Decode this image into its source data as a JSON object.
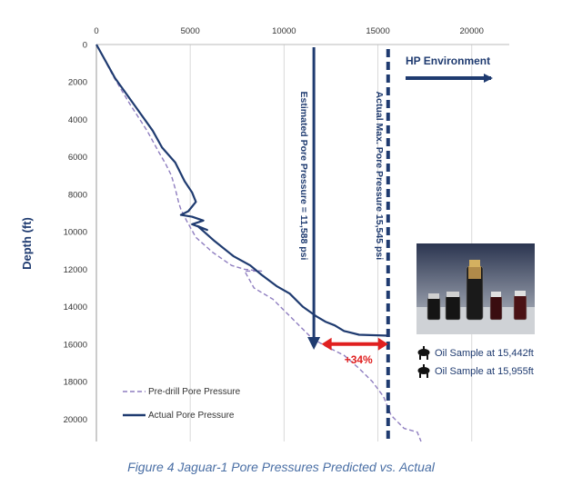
{
  "caption": "Figure 4 Jaguar-1 Pore Pressures Predicted vs. Actual",
  "colors": {
    "actual": "#1f3b70",
    "predrill": "#8f7ec0",
    "arrow_red": "#e02020",
    "grid": "#d9d9d9"
  },
  "icons": [
    "oil-drop-icon",
    "oil-drop-icon"
  ],
  "chart_data": {
    "type": "line",
    "ylabel": "Depth (ft)",
    "x_axis_position": "top",
    "y_inverted": true,
    "xlim": [
      0,
      22000
    ],
    "ylim": [
      0,
      21200
    ],
    "x_ticks": [
      0,
      5000,
      10000,
      15000,
      20000
    ],
    "y_ticks": [
      0,
      2000,
      4000,
      6000,
      8000,
      10000,
      12000,
      14000,
      16000,
      18000,
      20000
    ],
    "x_tick_labels": [
      "0",
      "5000",
      "10000",
      "15000",
      "20000"
    ],
    "y_tick_labels": [
      "0",
      "2000",
      "4000",
      "6000",
      "8000",
      "10000",
      "12000",
      "14000",
      "16000",
      "18000",
      "20000"
    ],
    "grid": "vertical",
    "series": [
      {
        "name": "Pre-drill Pore Pressure",
        "style": "dashed",
        "x": [
          0,
          900,
          1800,
          2700,
          3300,
          3700,
          4000,
          4200,
          4400,
          4500,
          4800,
          5300,
          6200,
          7200,
          7900,
          8800,
          7900,
          8400,
          9400,
          10500,
          11500,
          12200,
          13200,
          14000,
          14700,
          15300,
          15700,
          16400,
          17100,
          17300
        ],
        "y": [
          0,
          1700,
          3200,
          4600,
          5700,
          6400,
          7000,
          7700,
          8500,
          8800,
          9400,
          10300,
          11100,
          11800,
          12000,
          12100,
          12100,
          13000,
          13600,
          14700,
          15700,
          16100,
          16600,
          17300,
          18000,
          18800,
          19800,
          20500,
          20700,
          21200
        ]
      },
      {
        "name": "Actual Pore Pressure",
        "style": "solid",
        "x": [
          0,
          1000,
          2000,
          3000,
          3500,
          4200,
          4700,
          5100,
          5300,
          4900,
          4500,
          5100,
          5700,
          5100,
          5900,
          5400,
          6300,
          7300,
          8200,
          8800,
          9600,
          10300,
          11000,
          11700,
          12200,
          12700,
          13200,
          14000,
          15545
        ],
        "y": [
          0,
          1800,
          3200,
          4600,
          5500,
          6300,
          7300,
          7900,
          8400,
          8900,
          9100,
          9200,
          9400,
          9600,
          9900,
          9700,
          10500,
          11300,
          11800,
          12300,
          12900,
          13300,
          14000,
          14500,
          14800,
          15000,
          15300,
          15500,
          15550
        ]
      }
    ],
    "annotations": [
      {
        "text": "Estimated Pore Pressure = 11,588 psi",
        "x": 11588,
        "y_from": 0,
        "y_to": 16300
      },
      {
        "text": "Actual Max. Pore Pressure 15,545 psi",
        "x": 15545,
        "style": "dashed-vertical"
      },
      {
        "text": "HP Environment",
        "direction": "right"
      },
      {
        "text": "+34%",
        "x_from": 12000,
        "x_to": 15545,
        "y": 16000
      },
      {
        "text": "Oil Sample at 15,442ft"
      },
      {
        "text": "Oil Sample at 15,955ft"
      }
    ]
  }
}
